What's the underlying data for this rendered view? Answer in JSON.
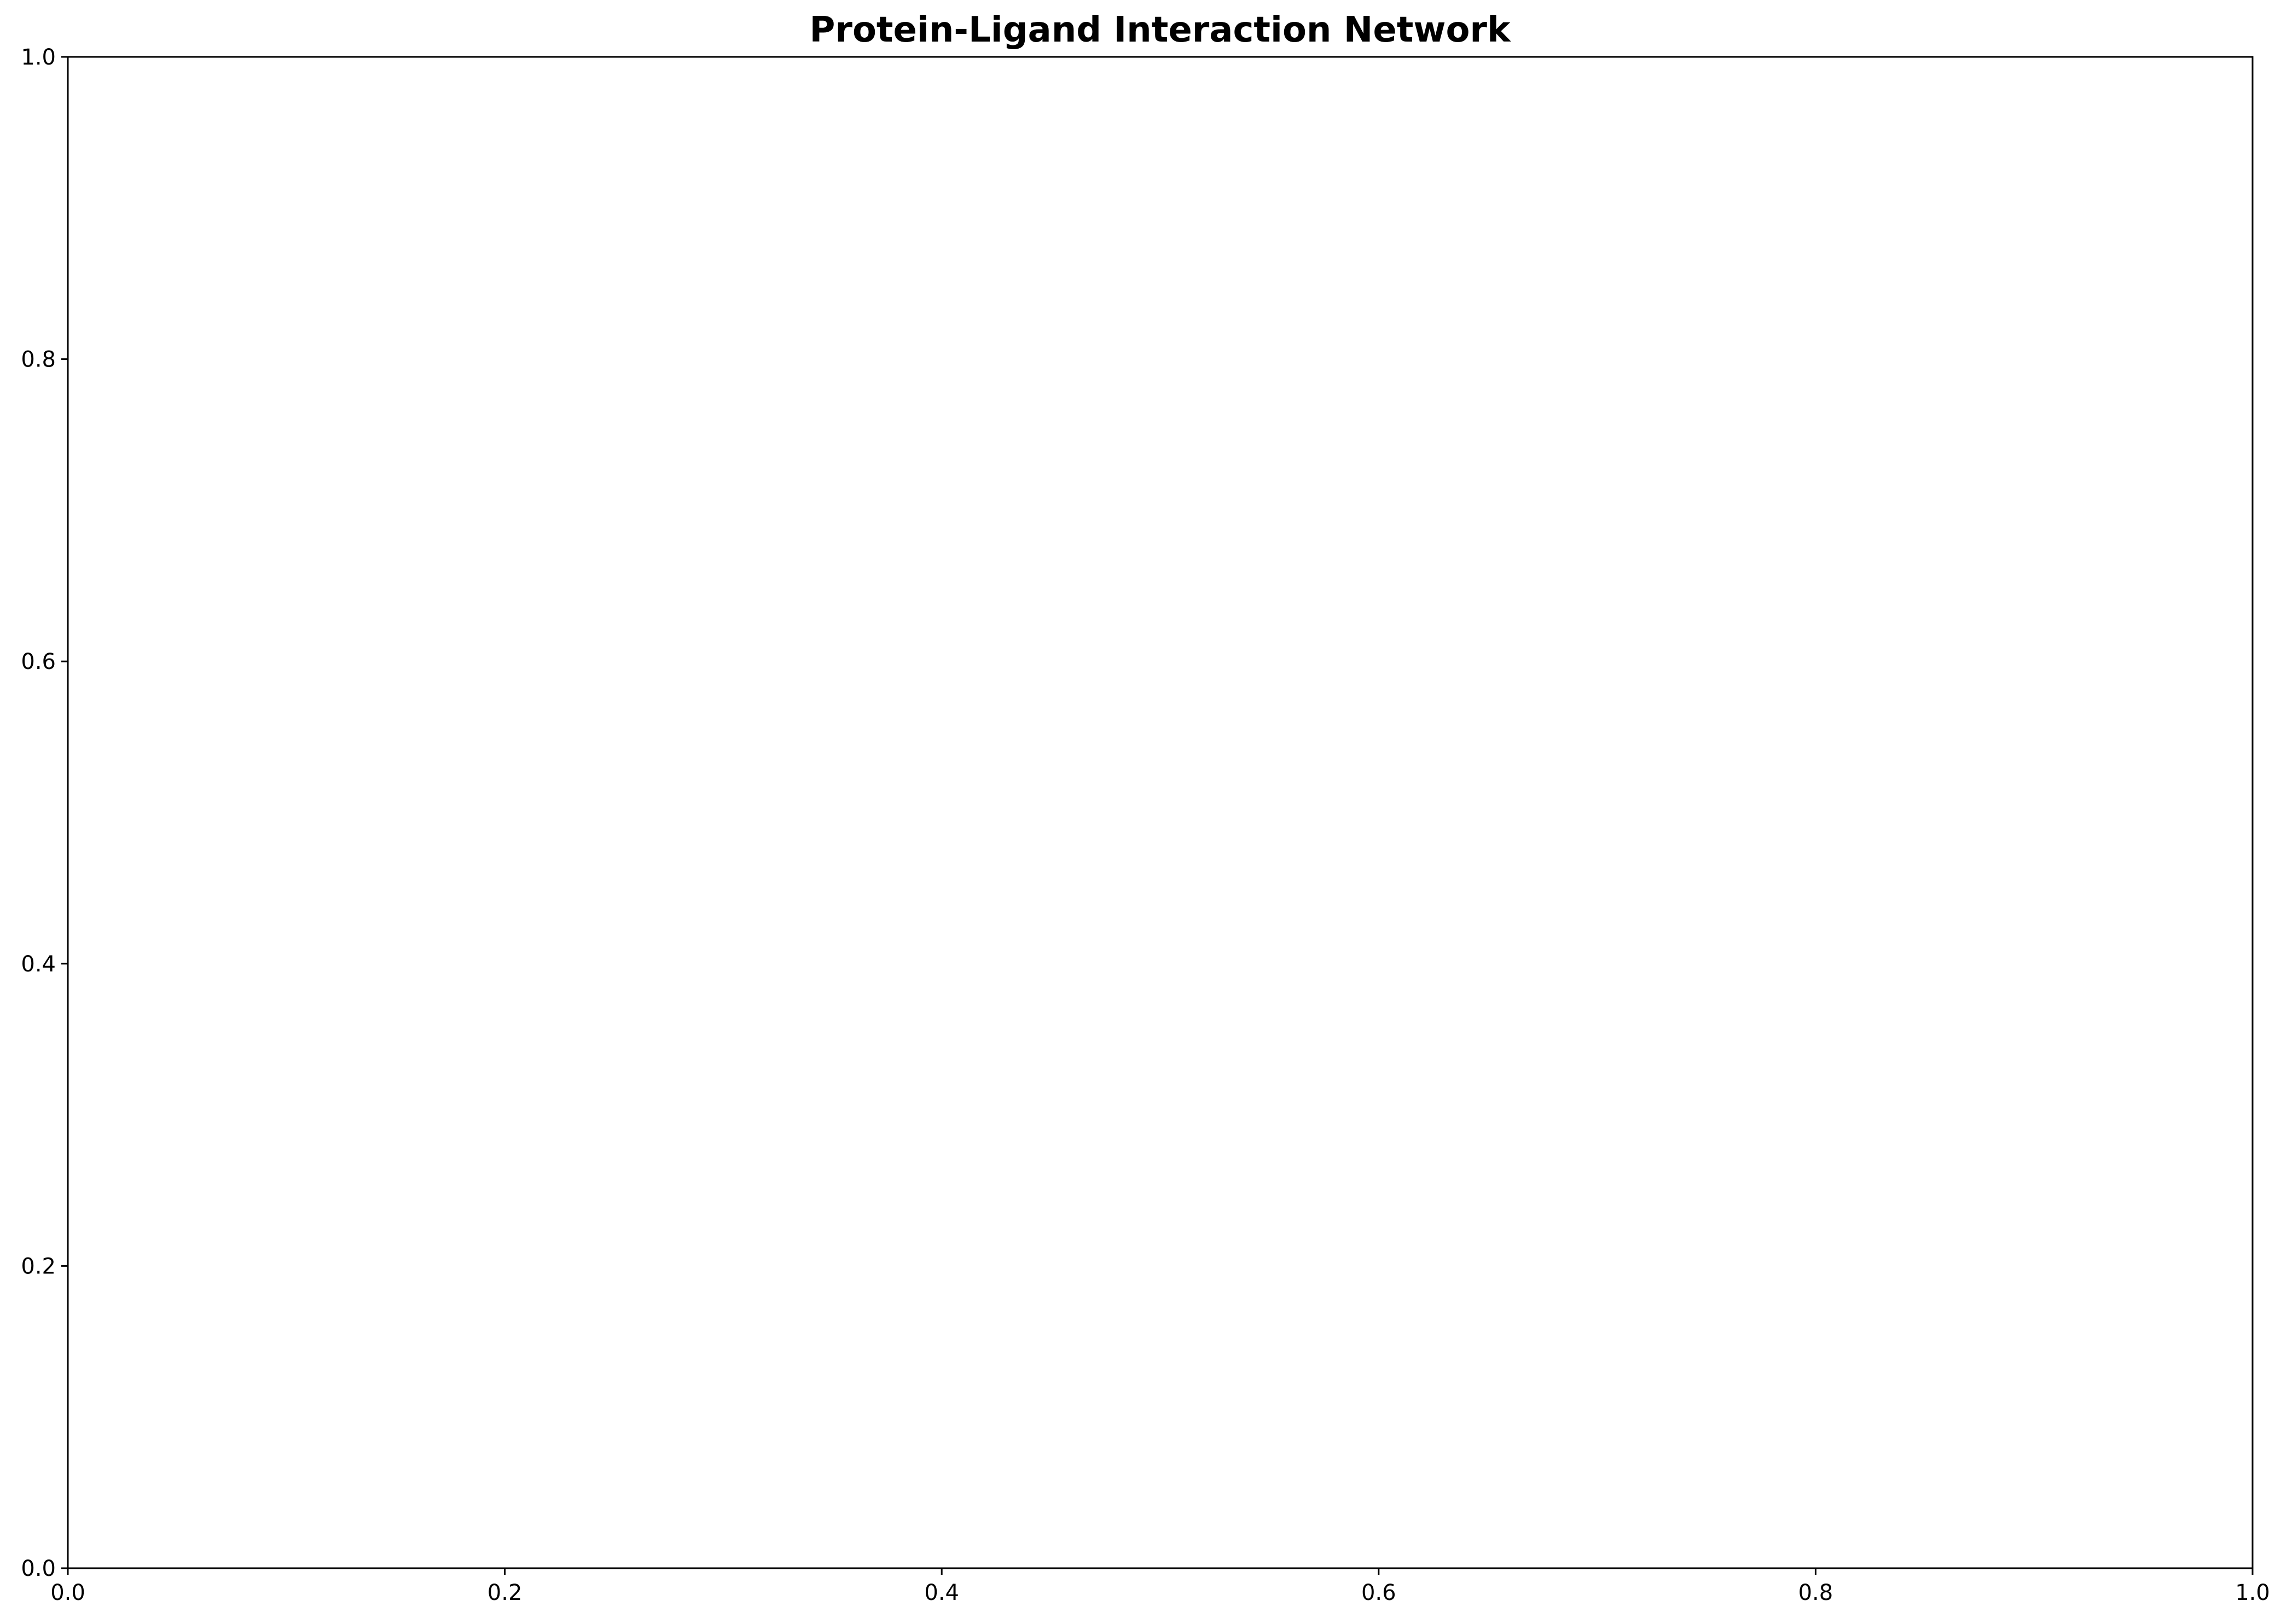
{
  "chart_data": {
    "type": "scatter",
    "title": "Protein-Ligand Interaction Network",
    "xlabel": "",
    "ylabel": "",
    "xlim": [
      0.0,
      1.0
    ],
    "ylim": [
      0.0,
      1.0
    ],
    "xticks": [
      "0.0",
      "0.2",
      "0.4",
      "0.6",
      "0.8",
      "1.0"
    ],
    "yticks": [
      "0.0",
      "0.2",
      "0.4",
      "0.6",
      "0.8",
      "1.0"
    ],
    "grid": false,
    "series": []
  }
}
